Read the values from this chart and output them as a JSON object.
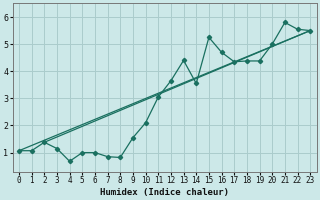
{
  "xlabel": "Humidex (Indice chaleur)",
  "bg_color": "#cce8e8",
  "grid_color": "#aacccc",
  "line_color": "#1a7060",
  "xlim": [
    -0.5,
    23.5
  ],
  "ylim": [
    0.3,
    6.5
  ],
  "xticks": [
    0,
    1,
    2,
    3,
    4,
    5,
    6,
    7,
    8,
    9,
    10,
    11,
    12,
    13,
    14,
    15,
    16,
    17,
    18,
    19,
    20,
    21,
    22,
    23
  ],
  "yticks": [
    1,
    2,
    3,
    4,
    5,
    6
  ],
  "curve1_x": [
    0,
    1,
    2,
    3,
    4,
    5,
    6,
    7,
    8,
    9,
    10,
    11,
    12,
    13,
    14,
    15,
    16,
    17,
    18,
    19,
    20,
    21,
    22,
    23
  ],
  "curve1_y": [
    1.07,
    1.07,
    1.38,
    1.15,
    0.68,
    1.0,
    1.0,
    0.85,
    0.82,
    1.55,
    2.1,
    3.05,
    3.65,
    4.4,
    3.55,
    5.25,
    4.7,
    4.35,
    4.38,
    4.38,
    5.0,
    5.8,
    5.55,
    5.5
  ],
  "curve2_x": [
    0,
    23
  ],
  "curve2_y": [
    1.07,
    5.5
  ],
  "curve3_x": [
    2,
    23
  ],
  "curve3_y": [
    1.38,
    5.5
  ]
}
